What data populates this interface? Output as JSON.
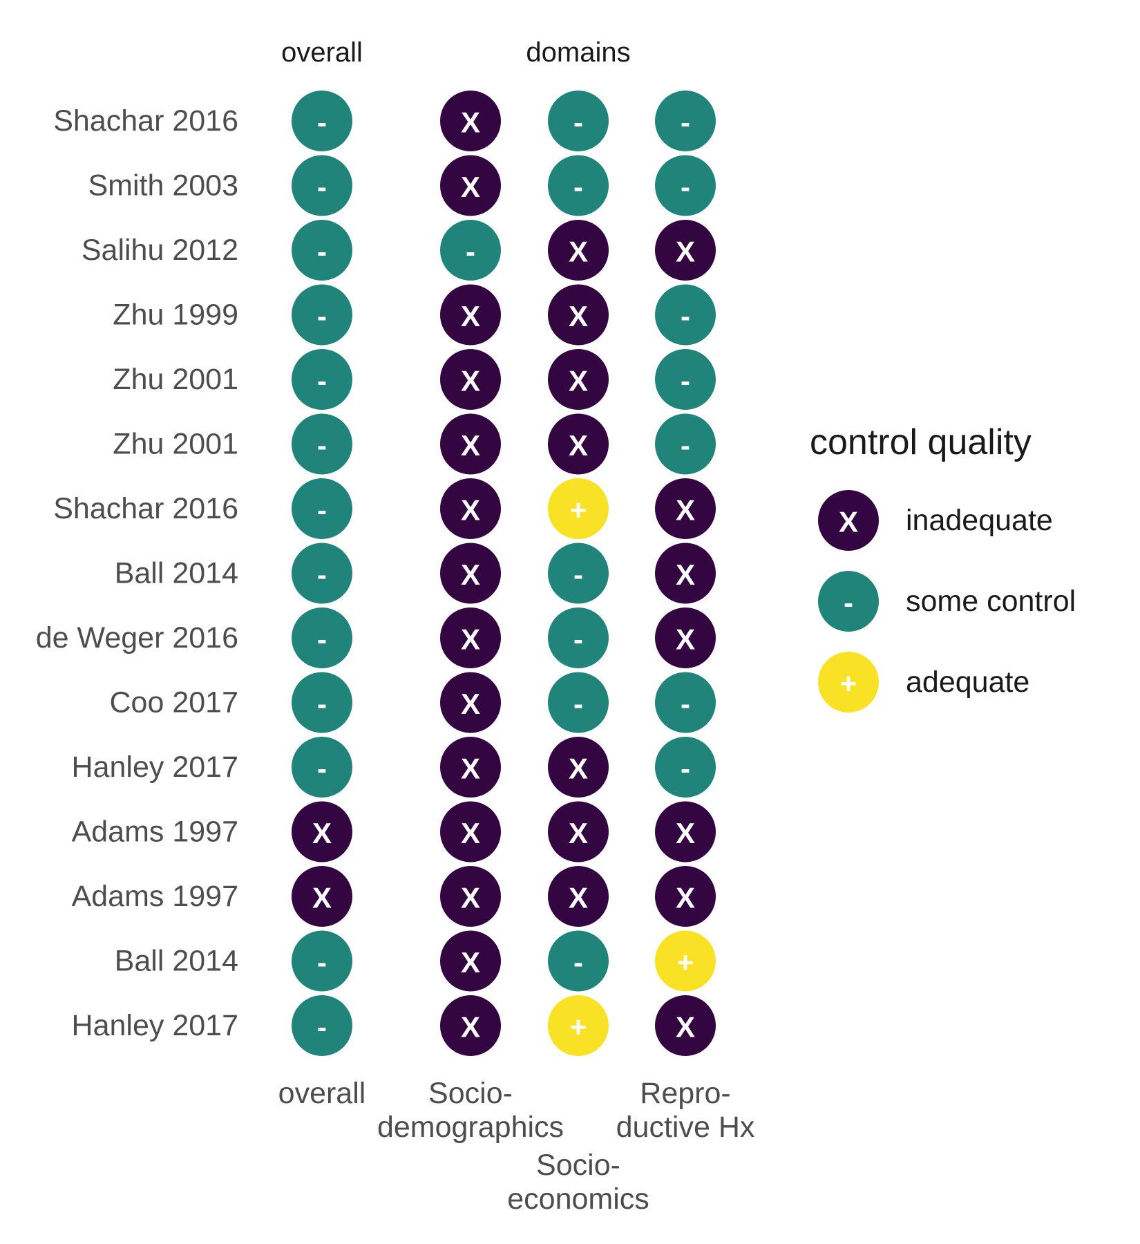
{
  "chart_data": {
    "type": "table",
    "facet_titles": [
      "overall",
      "domains"
    ],
    "columns": [
      {
        "key": "overall",
        "label_lines": [
          "overall"
        ],
        "facet": "overall"
      },
      {
        "key": "socio_demographics",
        "label_lines": [
          "Socio-",
          "demographics"
        ],
        "facet": "domains"
      },
      {
        "key": "socio_economics",
        "label_lines": [
          "Socio-",
          "economics"
        ],
        "facet": "domains"
      },
      {
        "key": "reproductive_hx",
        "label_lines": [
          "Repro-",
          "ductive Hx"
        ],
        "facet": "domains"
      }
    ],
    "rows": [
      {
        "study": "Shachar 2016",
        "values": [
          "some control",
          "inadequate",
          "some control",
          "some control"
        ]
      },
      {
        "study": "Smith 2003",
        "values": [
          "some control",
          "inadequate",
          "some control",
          "some control"
        ]
      },
      {
        "study": "Salihu 2012",
        "values": [
          "some control",
          "some control",
          "inadequate",
          "inadequate"
        ]
      },
      {
        "study": "Zhu 1999",
        "values": [
          "some control",
          "inadequate",
          "inadequate",
          "some control"
        ]
      },
      {
        "study": "Zhu 2001",
        "values": [
          "some control",
          "inadequate",
          "inadequate",
          "some control"
        ]
      },
      {
        "study": "Zhu 2001",
        "values": [
          "some control",
          "inadequate",
          "inadequate",
          "some control"
        ]
      },
      {
        "study": "Shachar 2016",
        "values": [
          "some control",
          "inadequate",
          "adequate",
          "inadequate"
        ]
      },
      {
        "study": "Ball 2014",
        "values": [
          "some control",
          "inadequate",
          "some control",
          "inadequate"
        ]
      },
      {
        "study": "de Weger 2016",
        "values": [
          "some control",
          "inadequate",
          "some control",
          "inadequate"
        ]
      },
      {
        "study": "Coo 2017",
        "values": [
          "some control",
          "inadequate",
          "some control",
          "some control"
        ]
      },
      {
        "study": "Hanley 2017",
        "values": [
          "some control",
          "inadequate",
          "inadequate",
          "some control"
        ]
      },
      {
        "study": "Adams 1997",
        "values": [
          "inadequate",
          "inadequate",
          "inadequate",
          "inadequate"
        ]
      },
      {
        "study": "Adams 1997",
        "values": [
          "inadequate",
          "inadequate",
          "inadequate",
          "inadequate"
        ]
      },
      {
        "study": "Ball 2014",
        "values": [
          "some control",
          "inadequate",
          "some control",
          "adequate"
        ]
      },
      {
        "study": "Hanley 2017",
        "values": [
          "some control",
          "inadequate",
          "adequate",
          "inadequate"
        ]
      }
    ],
    "legend": {
      "title": "control quality",
      "placement": "right",
      "entries": [
        {
          "level": "inadequate",
          "label": "inadequate",
          "symbol": "X",
          "color": "#330541"
        },
        {
          "level": "some control",
          "label": "some control",
          "symbol": "-",
          "color": "#21847B"
        },
        {
          "level": "adequate",
          "label": "adequate",
          "symbol": "+",
          "color": "#F9E225"
        }
      ]
    }
  }
}
